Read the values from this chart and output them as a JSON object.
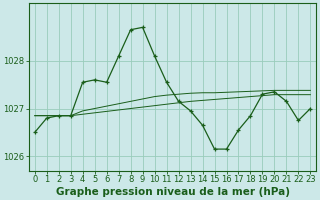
{
  "title": "Graphe pression niveau de la mer (hPa)",
  "background_color": "#cce8e8",
  "grid_color": "#99ccbb",
  "line_color": "#1a5e1a",
  "x_values": [
    0,
    1,
    2,
    3,
    4,
    5,
    6,
    7,
    8,
    9,
    10,
    11,
    12,
    13,
    14,
    15,
    16,
    17,
    18,
    19,
    20,
    21,
    22,
    23
  ],
  "y_main": [
    1026.5,
    1026.8,
    1026.85,
    1026.85,
    1027.55,
    1027.6,
    1027.55,
    1028.1,
    1028.65,
    1028.7,
    1028.1,
    1027.55,
    1027.15,
    1026.95,
    1026.65,
    1026.15,
    1026.15,
    1026.55,
    1026.85,
    1027.3,
    1027.35,
    1027.15,
    1026.75,
    1027.0
  ],
  "y_line2": [
    1026.85,
    1026.85,
    1026.85,
    1026.85,
    1026.88,
    1026.91,
    1026.94,
    1026.97,
    1027.0,
    1027.03,
    1027.06,
    1027.09,
    1027.12,
    1027.15,
    1027.17,
    1027.19,
    1027.21,
    1027.23,
    1027.25,
    1027.27,
    1027.29,
    1027.29,
    1027.29,
    1027.29
  ],
  "y_line3": [
    1026.85,
    1026.85,
    1026.85,
    1026.85,
    1026.95,
    1027.0,
    1027.05,
    1027.1,
    1027.15,
    1027.2,
    1027.25,
    1027.28,
    1027.3,
    1027.32,
    1027.33,
    1027.33,
    1027.34,
    1027.35,
    1027.36,
    1027.37,
    1027.38,
    1027.38,
    1027.38,
    1027.38
  ],
  "ylim": [
    1025.7,
    1029.2
  ],
  "yticks": [
    1026,
    1027,
    1028
  ],
  "xlim": [
    -0.5,
    23.5
  ],
  "title_fontsize": 7.5,
  "tick_fontsize": 6
}
